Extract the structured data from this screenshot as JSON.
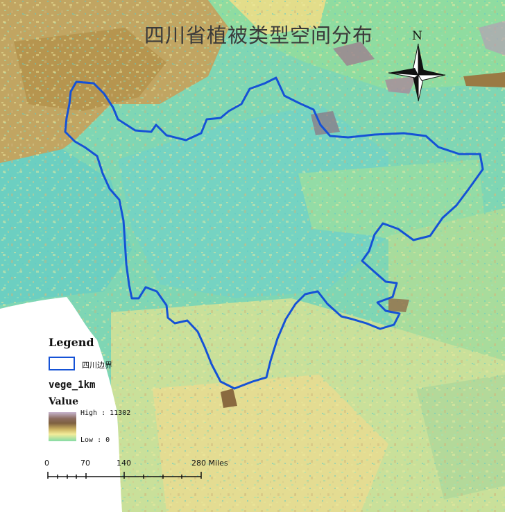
{
  "map": {
    "title": "四川省植被类型空间分布",
    "north_arrow_label": "N",
    "colors": {
      "boundary": "#1552d6",
      "low": "#84dba5",
      "mid_cyan": "#6fd1c8",
      "yellow": "#efe08a",
      "brown": "#b79a5e",
      "high": "#c7b5cf"
    }
  },
  "legend": {
    "title": "Legend",
    "boundary_label": "四川边界",
    "layer_name": "vege_1km",
    "value_label": "Value",
    "high_label": "High : 11302",
    "low_label": "Low : 0"
  },
  "scale_bar": {
    "ticks": [
      "0",
      "70",
      "140",
      "280 Miles"
    ]
  }
}
